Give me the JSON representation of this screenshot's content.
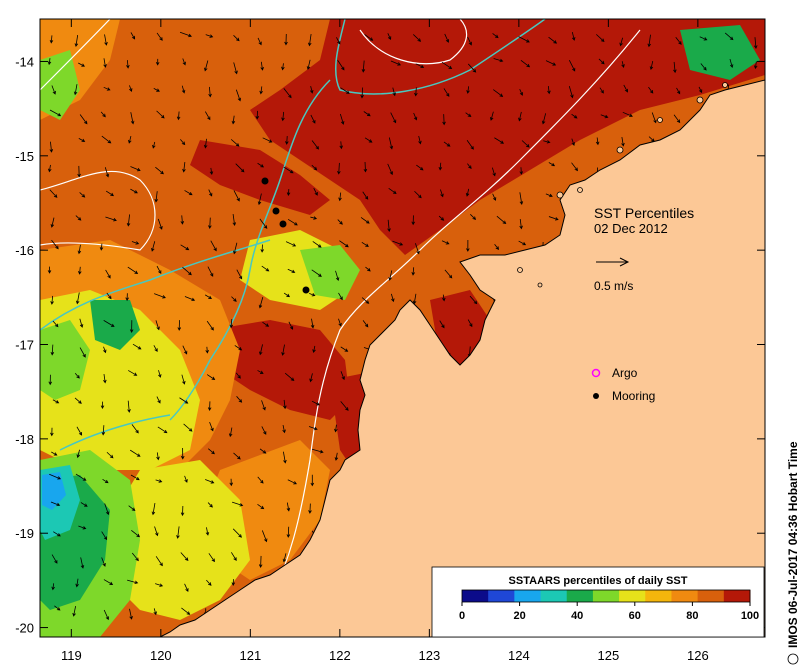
{
  "map": {
    "x_ticks": [
      "119",
      "120",
      "121",
      "122",
      "123",
      "124",
      "125",
      "126"
    ],
    "y_ticks": [
      "-14",
      "-15",
      "-16",
      "-17",
      "-18",
      "-19",
      "-20"
    ],
    "lon_range": [
      118.65,
      126.75
    ],
    "lat_range": [
      -20.1,
      -13.55
    ]
  },
  "annotations": {
    "title_line1": "SST Percentiles",
    "title_line2": "02 Dec 2012",
    "scale_arrow_label": "0.5 m/s"
  },
  "legend": {
    "argo_label": "Argo",
    "mooring_label": "Mooring"
  },
  "colorbar": {
    "title": "SSTAARS percentiles of daily SST",
    "ticks": [
      "0",
      "20",
      "40",
      "60",
      "80",
      "100"
    ],
    "colors": [
      "#0b0b8a",
      "#1f47d6",
      "#18a6ee",
      "#1cc8b4",
      "#1aaa4a",
      "#7ed82a",
      "#e6e21a",
      "#f5b60c",
      "#f08a10",
      "#d8600c",
      "#b41808"
    ]
  },
  "credit": {
    "text": "IMOS 06-Jul-2017 04:36 Hobart Time"
  },
  "colors": {
    "land": "#fcc896",
    "ocean_base": "#d8600c",
    "contour_cyan": "#49c8c0",
    "contour_white": "#ffffff"
  }
}
